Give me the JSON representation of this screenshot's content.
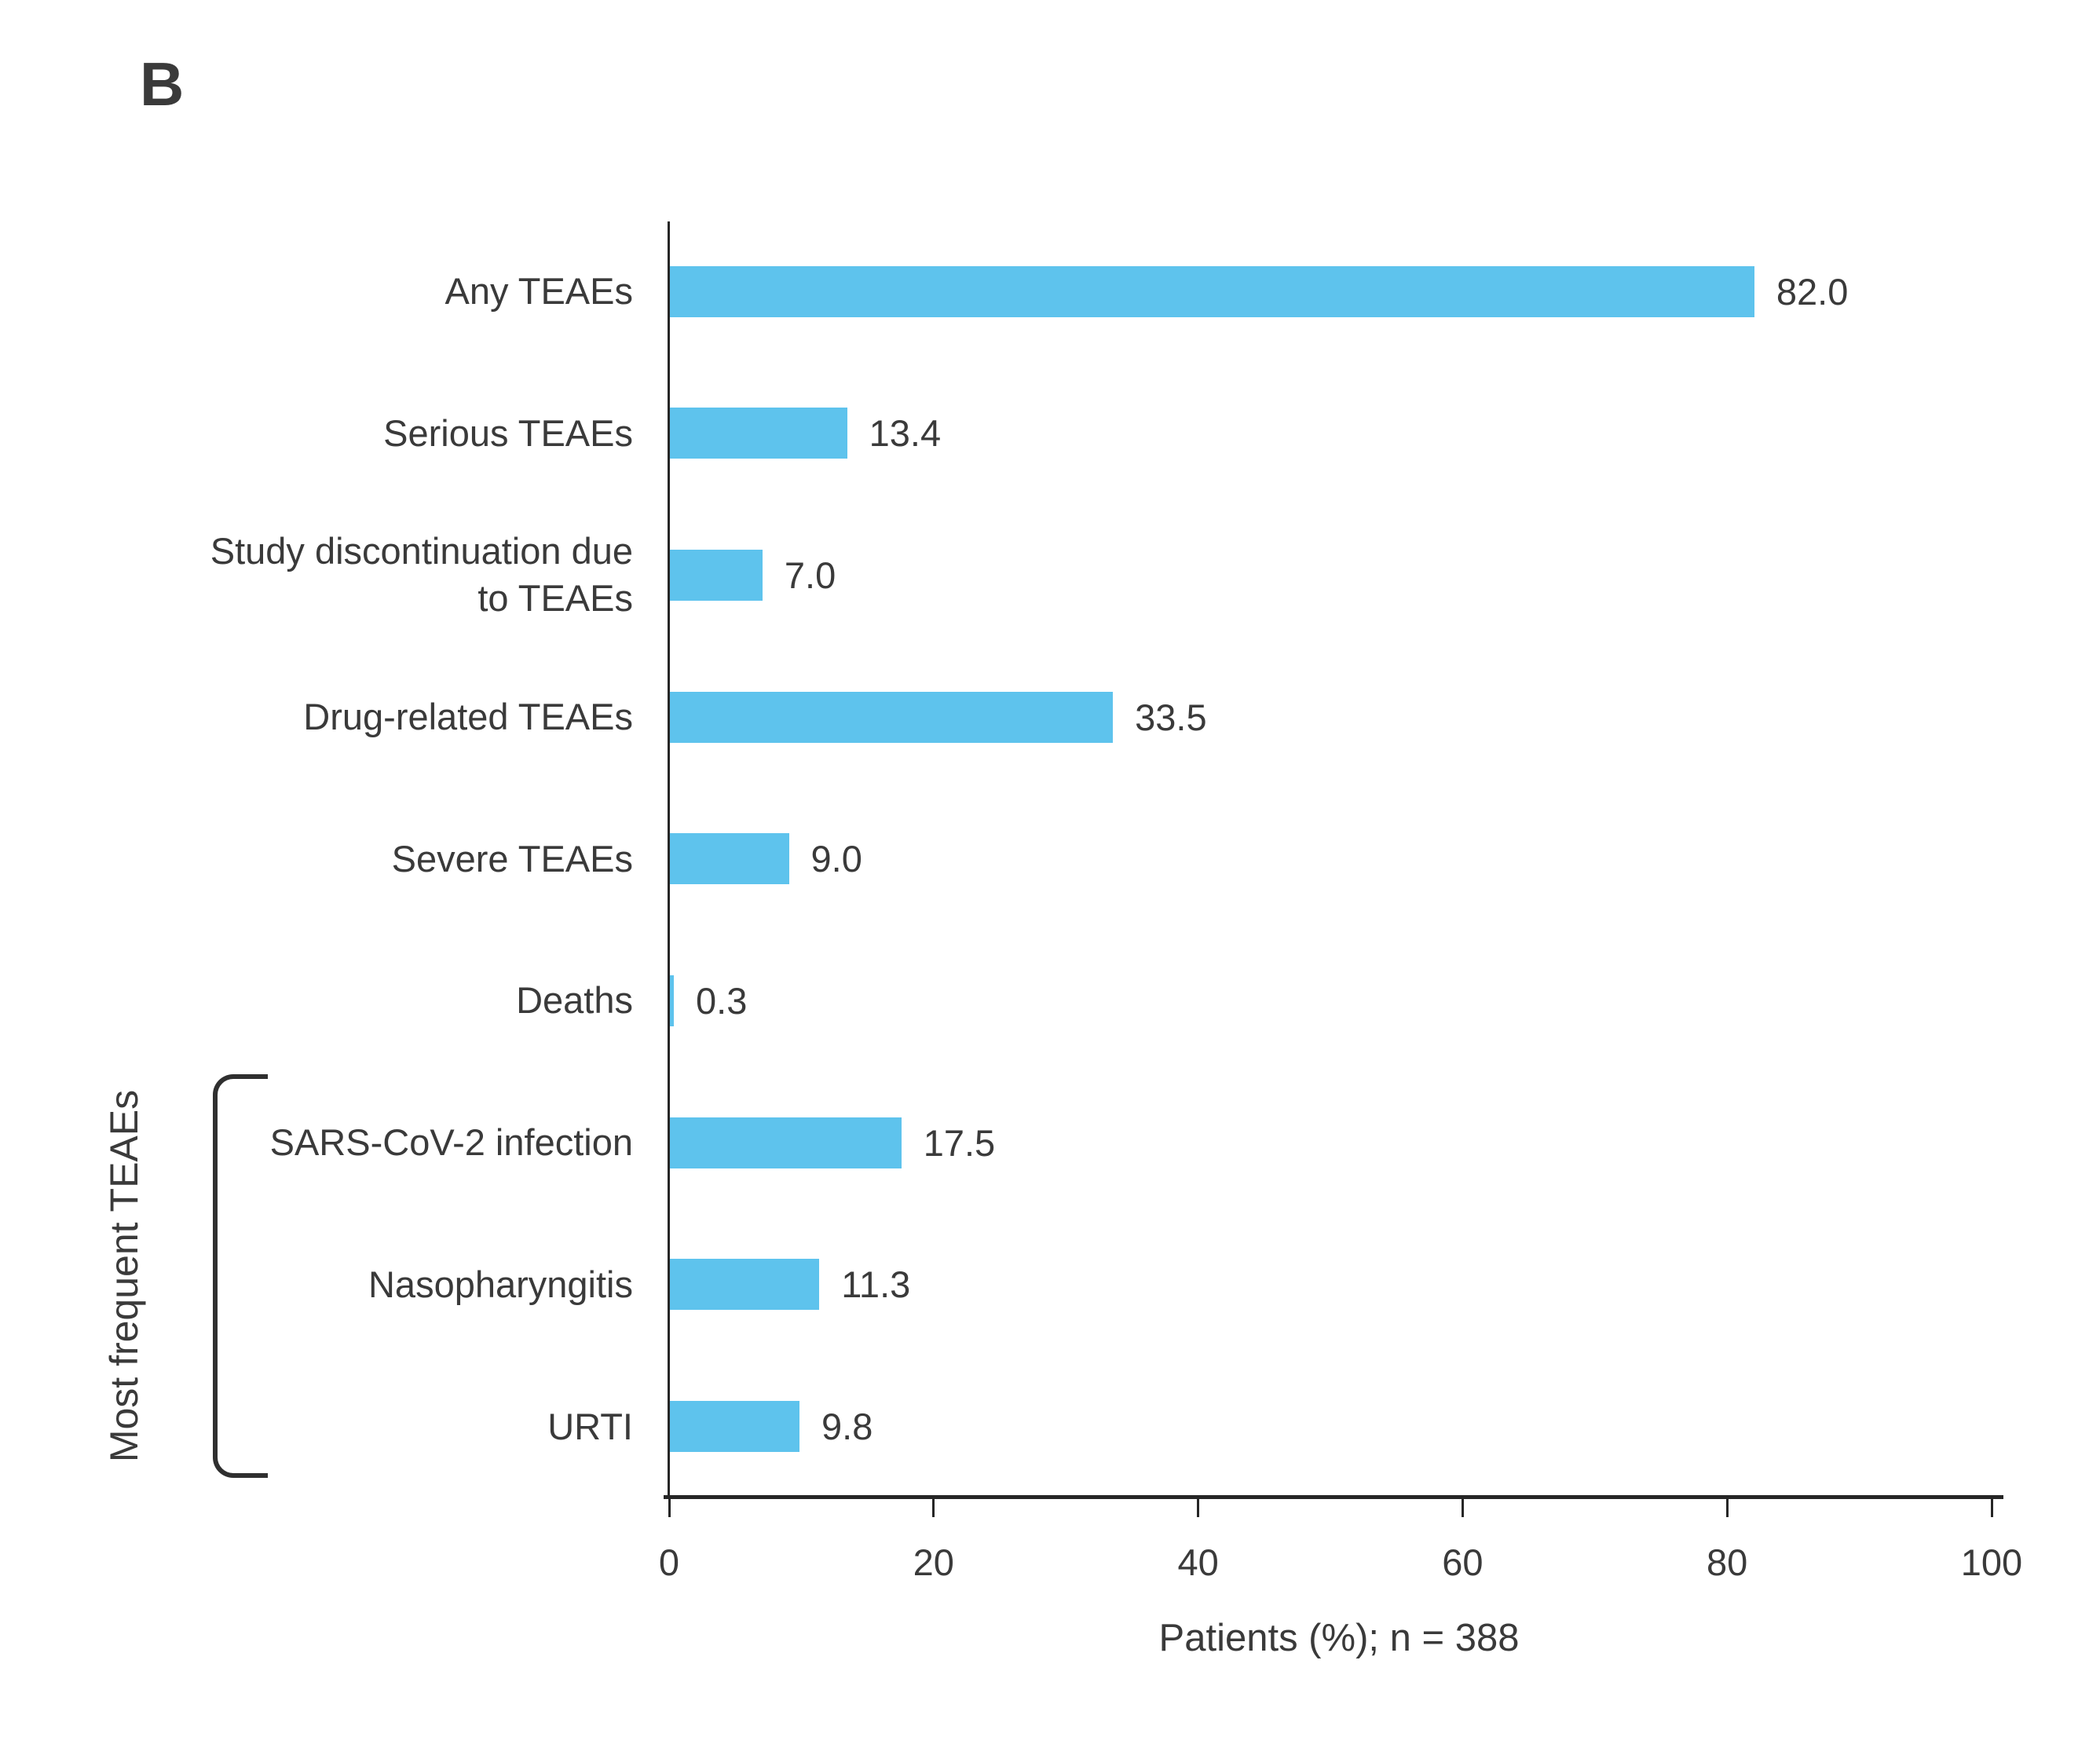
{
  "panel_label": "B",
  "colors": {
    "bar": "#5ec3ed",
    "axis": "#262626",
    "text": "#3a3a3a"
  },
  "chart_data": {
    "type": "bar",
    "orientation": "horizontal",
    "title": "B",
    "categories": [
      "Any TEAEs",
      "Serious TEAEs",
      "Study discontinuation due to TEAEs",
      "Drug-related TEAEs",
      "Severe TEAEs",
      "Deaths",
      "SARS-CoV-2 infection",
      "Nasopharyngitis",
      "URTI"
    ],
    "values": [
      82.0,
      13.4,
      7.0,
      33.5,
      9.0,
      0.3,
      17.5,
      11.3,
      9.8
    ],
    "value_labels": [
      "82.0",
      "13.4",
      "7.0",
      "33.5",
      "9.0",
      "0.3",
      "17.5",
      "11.3",
      "9.8"
    ],
    "xlabel": "Patients (%); n = 388",
    "xlim": [
      0,
      100
    ],
    "x_ticks": [
      0,
      20,
      40,
      60,
      80,
      100
    ],
    "x_tick_labels": [
      "0",
      "20",
      "40",
      "60",
      "80",
      "100"
    ],
    "grid": false,
    "legend": null,
    "bar_color": "#5ec3ed",
    "group_bracket": {
      "label": "Most frequent TEAEs",
      "categories": [
        "SARS-CoV-2 infection",
        "Nasopharyngitis",
        "URTI"
      ]
    }
  }
}
